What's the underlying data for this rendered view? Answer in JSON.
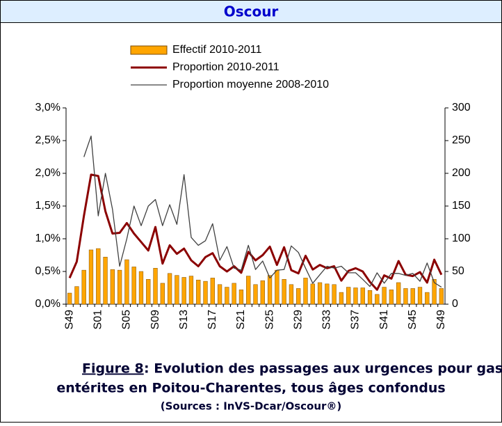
{
  "chart_data": {
    "type": "bar",
    "title": "Oscour",
    "figure_label": "Figure 8",
    "caption": [
      " : Evolution des passages aux urgences pour gastro-",
      "entérites en Poitou-Charentes, tous âges confondus"
    ],
    "source": "(Sources : InVS-Dcar/Oscour®)",
    "legend": "top",
    "grid": false,
    "categories": [
      "S49",
      null,
      null,
      null,
      "S01",
      null,
      null,
      null,
      "S05",
      null,
      null,
      null,
      "S09",
      null,
      null,
      null,
      "S13",
      null,
      null,
      null,
      "S17",
      null,
      null,
      null,
      "S21",
      null,
      null,
      null,
      "S25",
      null,
      null,
      null,
      "S29",
      null,
      null,
      null,
      "S33",
      null,
      null,
      null,
      "S37",
      null,
      null,
      null,
      "S41",
      null,
      null,
      null,
      "S45",
      null,
      null,
      null,
      "S49"
    ],
    "ylim": [
      0,
      3
    ],
    "yticks": [
      {
        "value": 0,
        "label": "0,0%"
      },
      {
        "value": 0.5,
        "label": "0,5%"
      },
      {
        "value": 1,
        "label": "1,0%"
      },
      {
        "value": 1.5,
        "label": "1,5%"
      },
      {
        "value": 2,
        "label": "2,0%"
      },
      {
        "value": 2.5,
        "label": "2,5%"
      },
      {
        "value": 3,
        "label": "3,0%"
      }
    ],
    "y2lim": [
      0,
      300
    ],
    "y2ticks": [
      0,
      50,
      100,
      150,
      200,
      250,
      300
    ],
    "series": [
      {
        "name": "Effectif 2010-2011",
        "type": "bar",
        "axis": "y2",
        "color": "#FFA500",
        "values": [
          17,
          27,
          52,
          83,
          85,
          72,
          53,
          52,
          68,
          57,
          50,
          38,
          55,
          32,
          47,
          44,
          41,
          43,
          37,
          35,
          40,
          30,
          26,
          32,
          22,
          43,
          30,
          36,
          44,
          52,
          38,
          30,
          24,
          40,
          31,
          33,
          31,
          30,
          18,
          26,
          25,
          25,
          21,
          15,
          26,
          22,
          33,
          24,
          24,
          26,
          18,
          38,
          24
        ]
      },
      {
        "name": "Proportion 2010-2011",
        "type": "line",
        "axis": "y",
        "color": "#8B0000",
        "values": [
          0.4,
          0.65,
          1.35,
          1.98,
          1.96,
          1.42,
          1.08,
          1.09,
          1.24,
          1.08,
          0.95,
          0.82,
          1.18,
          0.62,
          0.9,
          0.77,
          0.85,
          0.67,
          0.58,
          0.72,
          0.78,
          0.58,
          0.5,
          0.58,
          0.48,
          0.8,
          0.67,
          0.75,
          0.88,
          0.6,
          0.87,
          0.52,
          0.47,
          0.74,
          0.53,
          0.6,
          0.55,
          0.58,
          0.36,
          0.51,
          0.55,
          0.5,
          0.34,
          0.22,
          0.44,
          0.39,
          0.66,
          0.45,
          0.43,
          0.49,
          0.33,
          0.68,
          0.45
        ]
      },
      {
        "name": "Proportion moyenne 2008-2010",
        "type": "line",
        "axis": "y",
        "color": "#404040",
        "values": [
          null,
          null,
          2.25,
          2.57,
          1.35,
          2.0,
          1.45,
          0.58,
          1.0,
          1.5,
          1.2,
          1.5,
          1.6,
          1.2,
          1.52,
          1.22,
          1.98,
          1.02,
          0.9,
          0.97,
          1.23,
          0.67,
          0.88,
          0.55,
          0.52,
          0.9,
          0.53,
          0.66,
          0.4,
          0.52,
          0.53,
          0.89,
          0.79,
          0.55,
          0.32,
          0.45,
          0.58,
          0.55,
          0.58,
          0.48,
          0.48,
          0.38,
          0.27,
          0.48,
          0.32,
          0.47,
          0.47,
          0.44,
          0.47,
          0.35,
          0.63,
          0.33,
          0.26
        ]
      }
    ]
  }
}
